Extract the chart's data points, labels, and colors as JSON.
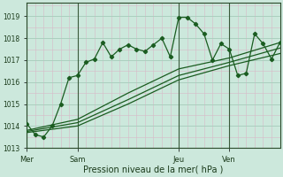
{
  "background_color": "#cce8dc",
  "grid_major_color": "#aacfbf",
  "grid_minor_color": "#d8b8c8",
  "line_color": "#1a5c20",
  "title": "Pression niveau de la mer( hPa )",
  "x_ticks_labels": [
    "Mer",
    "Sam",
    "Jeu",
    "Ven"
  ],
  "x_ticks_pos": [
    0,
    6,
    18,
    24
  ],
  "ylim": [
    1013.0,
    1019.6
  ],
  "yticks": [
    1013,
    1014,
    1015,
    1016,
    1017,
    1018,
    1019
  ],
  "xlim": [
    0,
    30
  ],
  "series1_x": [
    0,
    1,
    2,
    3,
    4,
    5,
    6,
    7,
    8,
    9,
    10,
    11,
    12,
    13,
    14,
    15,
    16,
    17,
    18,
    19,
    20,
    21,
    22,
    23,
    24,
    25,
    26,
    27,
    28,
    29,
    30
  ],
  "series1_y": [
    1014.1,
    1013.6,
    1013.5,
    1014.0,
    1015.0,
    1016.2,
    1016.3,
    1016.9,
    1017.05,
    1017.8,
    1017.15,
    1017.5,
    1017.7,
    1017.5,
    1017.4,
    1017.7,
    1018.0,
    1017.15,
    1018.95,
    1018.95,
    1018.65,
    1018.2,
    1017.0,
    1017.75,
    1017.5,
    1016.3,
    1016.4,
    1018.2,
    1017.75,
    1017.05,
    1017.8
  ],
  "series2_x": [
    0,
    6,
    12,
    18,
    24,
    30
  ],
  "series2_y": [
    1013.8,
    1014.3,
    1015.5,
    1016.6,
    1017.1,
    1017.8
  ],
  "series3_x": [
    0,
    6,
    12,
    18,
    24,
    30
  ],
  "series3_y": [
    1013.75,
    1014.15,
    1015.2,
    1016.3,
    1016.9,
    1017.55
  ],
  "series4_x": [
    0,
    6,
    12,
    18,
    24,
    30
  ],
  "series4_y": [
    1013.7,
    1014.0,
    1015.0,
    1016.1,
    1016.75,
    1017.3
  ],
  "vlines_x": [
    0,
    6,
    18,
    24
  ]
}
